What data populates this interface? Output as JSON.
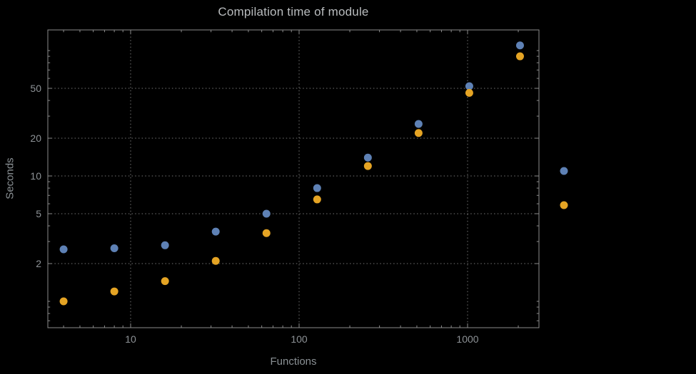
{
  "chart_data": {
    "type": "scatter",
    "title": "Compilation time of module",
    "xlabel": "Functions",
    "ylabel": "Seconds",
    "x_scale": "log",
    "y_scale": "log",
    "grid": "dotted",
    "x": [
      4,
      8,
      16,
      32,
      64,
      128,
      256,
      512,
      1024,
      2048
    ],
    "series": [
      {
        "color": "#5e81b5",
        "values": [
          2.6,
          2.65,
          2.8,
          3.6,
          5.0,
          8.0,
          14,
          26,
          52,
          110
        ]
      },
      {
        "color": "#e5a424",
        "values": [
          1.0,
          1.2,
          1.45,
          2.1,
          3.5,
          6.5,
          12,
          22,
          46,
          90
        ]
      }
    ],
    "x_ticks": [
      10,
      100,
      1000
    ],
    "x_tick_labels": [
      "10",
      "100",
      "1000"
    ],
    "y_ticks": [
      2,
      5,
      10,
      20,
      50
    ],
    "y_tick_labels": [
      "2",
      "5",
      "10",
      "20",
      "50"
    ],
    "x_range": [
      3.2,
      2655
    ],
    "y_range": [
      0.62,
      146
    ],
    "legend_markers": [
      {
        "color": "#5e81b5"
      },
      {
        "color": "#e5a424"
      }
    ]
  },
  "colors": {
    "background": "#000000",
    "frame": "#8c8c8c",
    "gridline": "#757575",
    "tick_label": "#8d9296",
    "title_text": "#b9bcbe",
    "axis_label_text": "#8a9094",
    "series_blue": "#5e81b5",
    "series_orange": "#e5a424"
  }
}
